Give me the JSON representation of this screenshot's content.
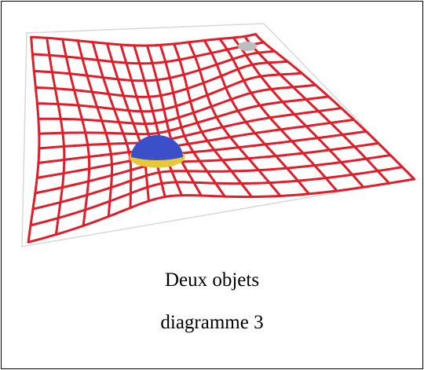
{
  "caption": {
    "line1": "Deux objets",
    "line2": "diagramme 3"
  },
  "figure": {
    "grid_color": "#e01e2a",
    "large_object_color": "#3a4fc8",
    "small_object_color": "#bdbdbd",
    "plane_edge_color": "#d8d8d8"
  }
}
